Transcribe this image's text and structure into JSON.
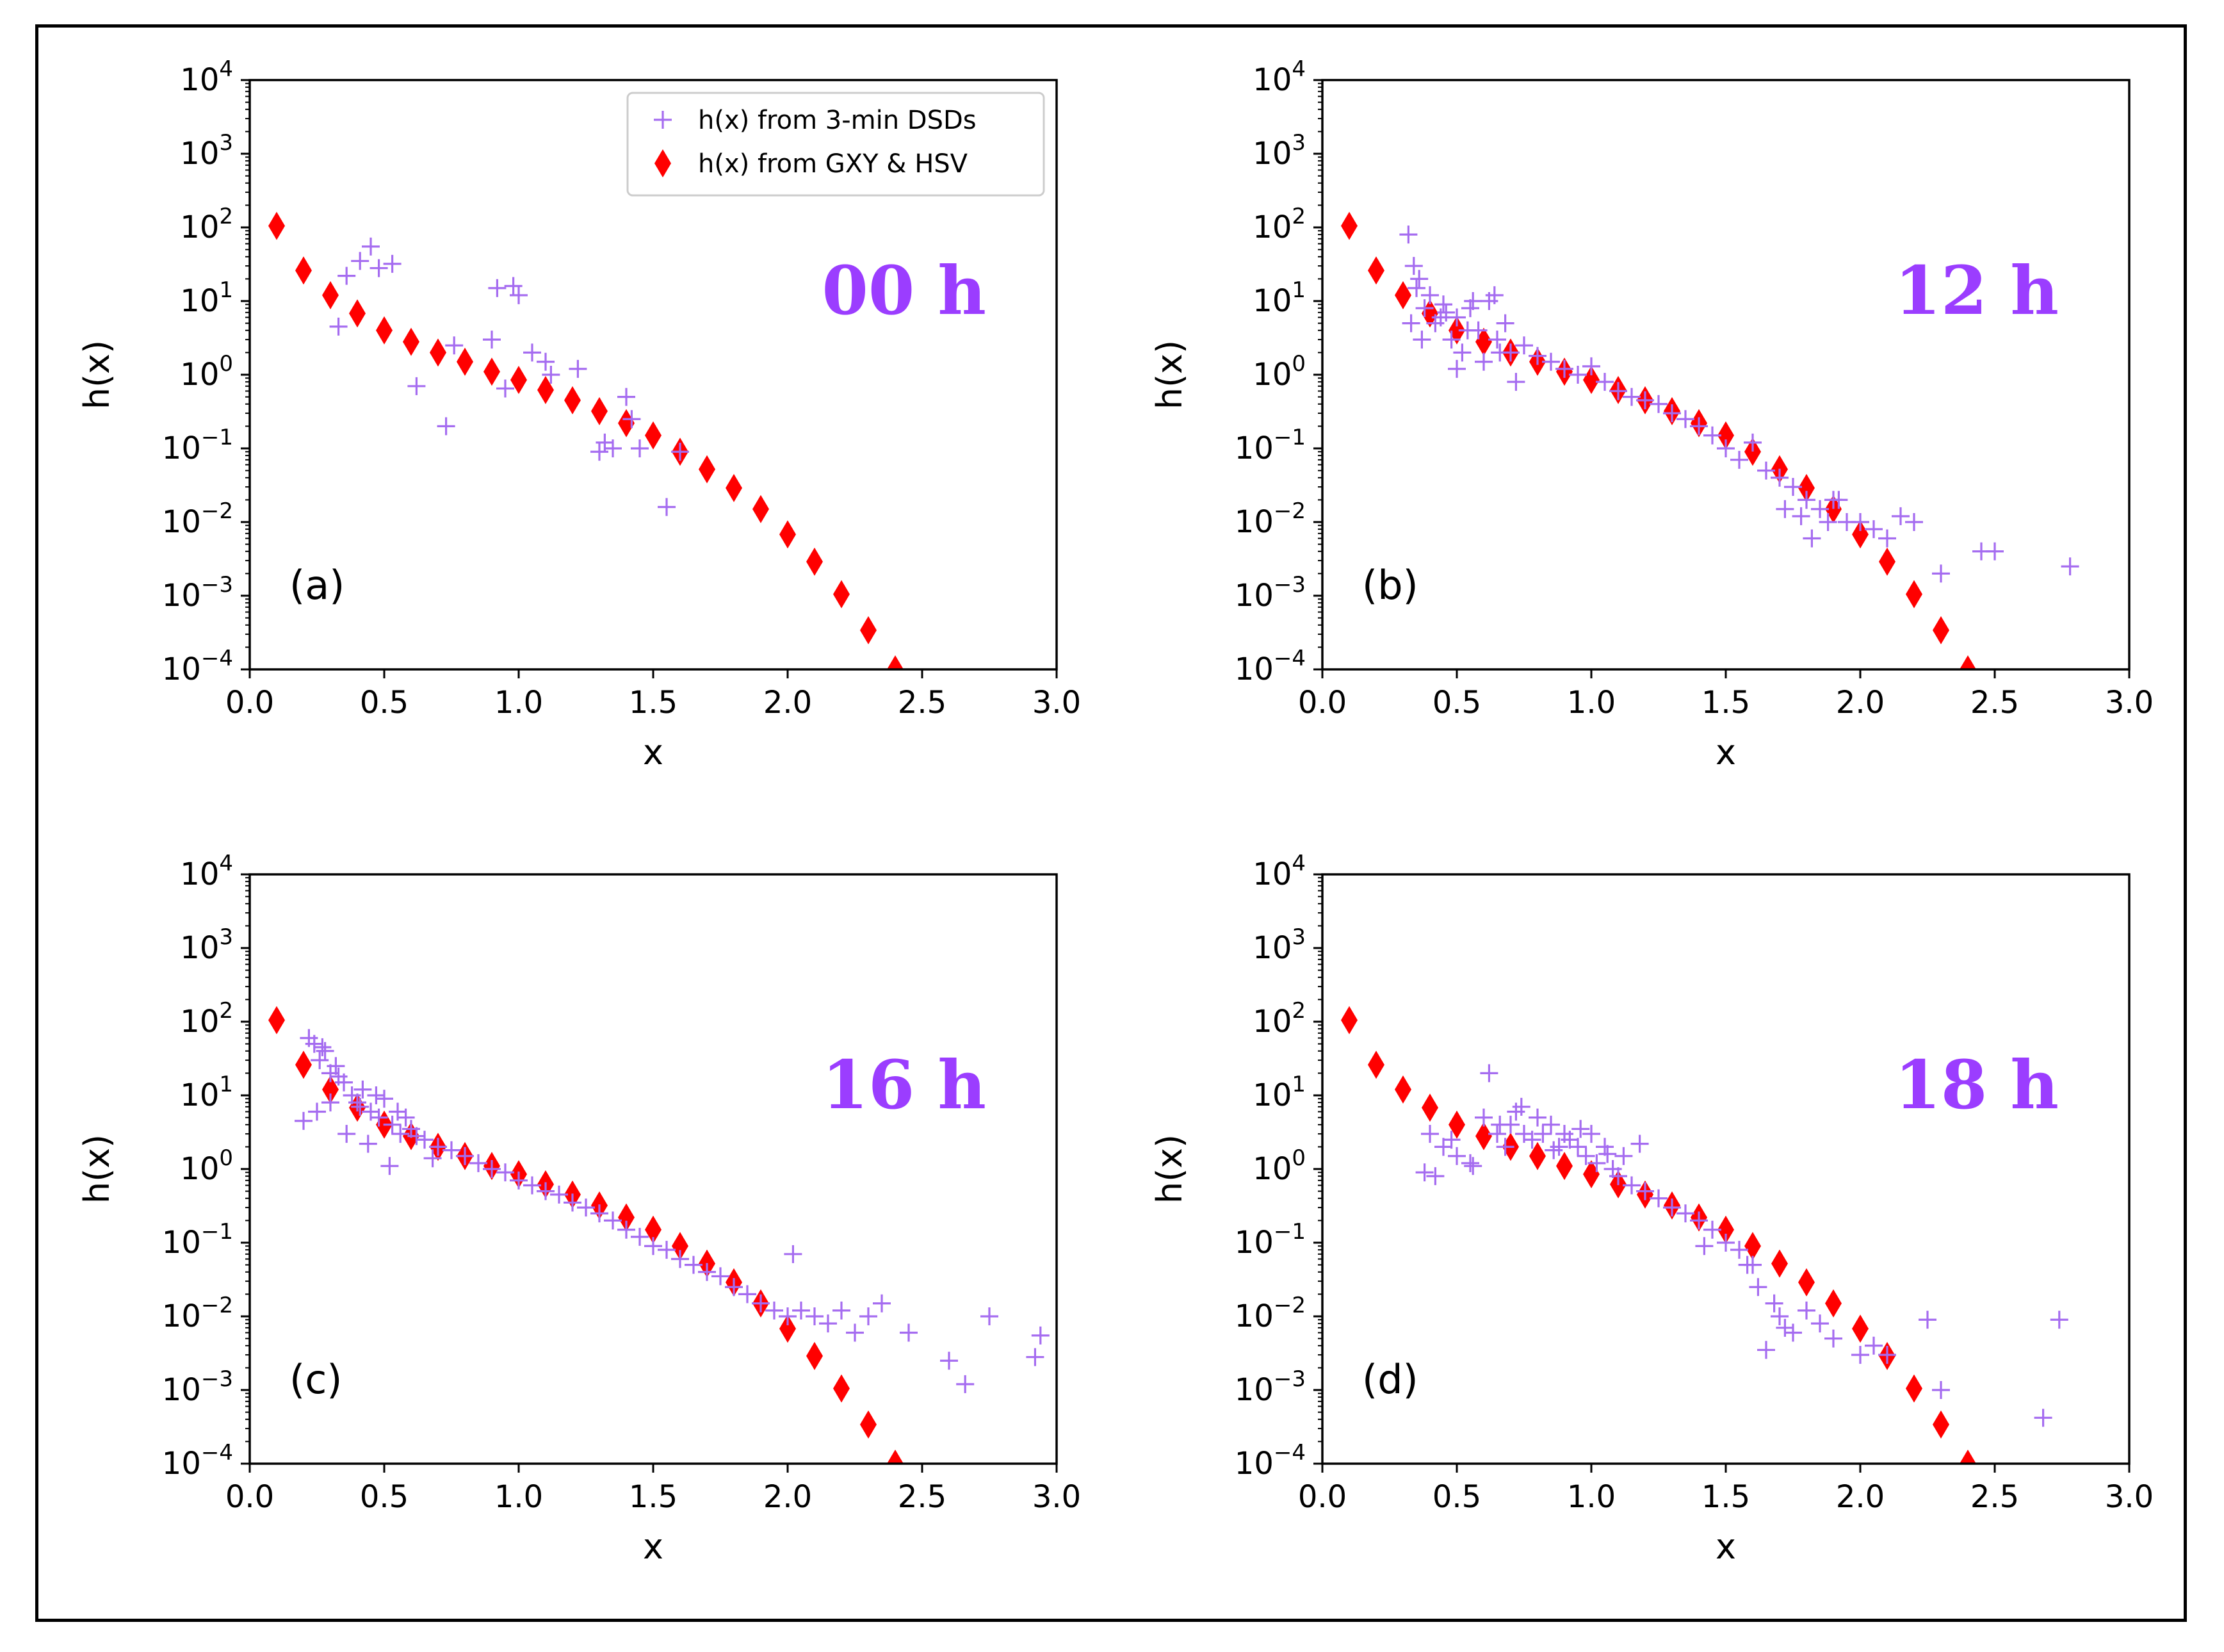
{
  "colors": {
    "empirical": "#a56cf0",
    "theory": "#ff0000",
    "time_label": "#9b3dff"
  },
  "legend": {
    "empirical_label": "h(x) from 3-min DSDs",
    "theory_label": "h(x) from GXY & HSV"
  },
  "chart_data": [
    {
      "type": "scatter",
      "panel_label": "(a)",
      "time_label": "00  h",
      "xlabel": "x",
      "ylabel": "h(x)",
      "xlim": [
        0.0,
        3.0
      ],
      "ylim_log10": [
        -4,
        4
      ],
      "x_ticks": [
        "0.0",
        "0.5",
        "1.0",
        "1.5",
        "2.0",
        "2.5",
        "3.0"
      ],
      "y_tick_exponents": [
        "-4",
        "-3",
        "-2",
        "-1",
        "0",
        "1",
        "2",
        "3",
        "4"
      ],
      "y_tick_base": "10",
      "has_legend": true,
      "series": [
        {
          "name": "h(x) from GXY & HSV",
          "marker": "diamond",
          "x": [
            0.1,
            0.2,
            0.3,
            0.4,
            0.5,
            0.6,
            0.7,
            0.8,
            0.9,
            1.0,
            1.1,
            1.2,
            1.3,
            1.4,
            1.5,
            1.6,
            1.7,
            1.8,
            1.9,
            2.0,
            2.1,
            2.2,
            2.3,
            2.4
          ],
          "y": [
            105,
            26,
            12,
            6.8,
            4.0,
            2.8,
            2.0,
            1.5,
            1.1,
            0.85,
            0.62,
            0.45,
            0.32,
            0.22,
            0.15,
            0.09,
            0.052,
            0.029,
            0.015,
            0.0068,
            0.0029,
            0.00105,
            0.00034,
            0.0001
          ]
        },
        {
          "name": "h(x) from 3-min DSDs",
          "marker": "plus",
          "x": [
            0.33,
            0.36,
            0.41,
            0.45,
            0.48,
            0.53,
            0.62,
            0.73,
            0.76,
            0.9,
            0.92,
            0.95,
            0.98,
            1.0,
            1.05,
            1.1,
            1.12,
            1.22,
            1.3,
            1.32,
            1.35,
            1.4,
            1.42,
            1.45,
            1.55,
            1.6
          ],
          "y": [
            4.5,
            22,
            35,
            55,
            28,
            32,
            0.7,
            0.2,
            2.5,
            3.0,
            15,
            0.65,
            16,
            12,
            2.0,
            1.5,
            1.0,
            1.2,
            0.09,
            0.12,
            0.1,
            0.5,
            0.25,
            0.1,
            0.016,
            0.09
          ]
        }
      ]
    },
    {
      "type": "scatter",
      "panel_label": "(b)",
      "time_label": "12  h",
      "xlabel": "x",
      "ylabel": "h(x)",
      "xlim": [
        0.0,
        3.0
      ],
      "ylim_log10": [
        -4,
        4
      ],
      "x_ticks": [
        "0.0",
        "0.5",
        "1.0",
        "1.5",
        "2.0",
        "2.5",
        "3.0"
      ],
      "y_tick_exponents": [
        "-4",
        "-3",
        "-2",
        "-1",
        "0",
        "1",
        "2",
        "3",
        "4"
      ],
      "y_tick_base": "10",
      "has_legend": false,
      "series": [
        {
          "name": "h(x) from GXY & HSV",
          "marker": "diamond",
          "x": [
            0.1,
            0.2,
            0.3,
            0.4,
            0.5,
            0.6,
            0.7,
            0.8,
            0.9,
            1.0,
            1.1,
            1.2,
            1.3,
            1.4,
            1.5,
            1.6,
            1.7,
            1.8,
            1.9,
            2.0,
            2.1,
            2.2,
            2.3,
            2.4
          ],
          "y": [
            105,
            26,
            12,
            6.8,
            4.0,
            2.8,
            2.0,
            1.5,
            1.1,
            0.85,
            0.62,
            0.45,
            0.32,
            0.22,
            0.15,
            0.09,
            0.052,
            0.029,
            0.015,
            0.0068,
            0.0029,
            0.00105,
            0.00034,
            0.0001
          ]
        },
        {
          "name": "h(x) from 3-min DSDs",
          "marker": "plus",
          "x": [
            0.32,
            0.34,
            0.36,
            0.38,
            0.4,
            0.42,
            0.45,
            0.48,
            0.5,
            0.52,
            0.55,
            0.58,
            0.6,
            0.62,
            0.65,
            0.68,
            0.7,
            0.75,
            0.8,
            0.85,
            0.9,
            0.95,
            1.0,
            1.05,
            1.1,
            1.15,
            1.2,
            1.25,
            1.3,
            1.35,
            1.4,
            1.45,
            1.5,
            1.55,
            1.6,
            1.65,
            1.7,
            1.75,
            1.8,
            1.85,
            1.9,
            1.95,
            2.0,
            2.05,
            2.1,
            2.15,
            2.2,
            2.3,
            2.45,
            2.5,
            2.78,
            0.33,
            0.37,
            0.44,
            0.5,
            0.56,
            0.66,
            0.72,
            0.35,
            0.46,
            0.54,
            0.64,
            1.72,
            1.78,
            1.82,
            1.88,
            1.92
          ],
          "y": [
            80,
            30,
            20,
            8,
            12,
            5,
            9,
            3,
            6,
            2,
            8,
            4,
            1.5,
            10,
            3,
            5,
            2,
            2.5,
            1.8,
            1.5,
            1.2,
            1.0,
            1.3,
            0.8,
            0.6,
            0.5,
            0.45,
            0.4,
            0.3,
            0.25,
            0.2,
            0.15,
            0.1,
            0.07,
            0.12,
            0.05,
            0.04,
            0.03,
            0.02,
            0.015,
            0.02,
            0.01,
            0.01,
            0.008,
            0.006,
            0.012,
            0.01,
            0.002,
            0.004,
            0.004,
            0.0025,
            5,
            3,
            6,
            1.2,
            10,
            2,
            0.8,
            15,
            7,
            4,
            12,
            0.015,
            0.012,
            0.006,
            0.01,
            0.02
          ]
        }
      ]
    },
    {
      "type": "scatter",
      "panel_label": "(c)",
      "time_label": "16  h",
      "xlabel": "x",
      "ylabel": "h(x)",
      "xlim": [
        0.0,
        3.0
      ],
      "ylim_log10": [
        -4,
        4
      ],
      "x_ticks": [
        "0.0",
        "0.5",
        "1.0",
        "1.5",
        "2.0",
        "2.5",
        "3.0"
      ],
      "y_tick_exponents": [
        "-4",
        "-3",
        "-2",
        "-1",
        "0",
        "1",
        "2",
        "3",
        "4"
      ],
      "y_tick_base": "10",
      "has_legend": false,
      "series": [
        {
          "name": "h(x) from GXY & HSV",
          "marker": "diamond",
          "x": [
            0.1,
            0.2,
            0.3,
            0.4,
            0.5,
            0.6,
            0.7,
            0.8,
            0.9,
            1.0,
            1.1,
            1.2,
            1.3,
            1.4,
            1.5,
            1.6,
            1.7,
            1.8,
            1.9,
            2.0,
            2.1,
            2.2,
            2.3,
            2.4
          ],
          "y": [
            105,
            26,
            12,
            6.8,
            4.0,
            2.8,
            2.0,
            1.5,
            1.1,
            0.85,
            0.62,
            0.45,
            0.32,
            0.22,
            0.15,
            0.09,
            0.052,
            0.029,
            0.015,
            0.0068,
            0.0029,
            0.00105,
            0.00034,
            0.0001
          ]
        },
        {
          "name": "h(x) from 3-min DSDs",
          "marker": "plus",
          "x": [
            0.2,
            0.22,
            0.24,
            0.26,
            0.28,
            0.3,
            0.32,
            0.35,
            0.38,
            0.4,
            0.42,
            0.45,
            0.48,
            0.5,
            0.53,
            0.56,
            0.6,
            0.65,
            0.7,
            0.75,
            0.8,
            0.85,
            0.9,
            0.95,
            1.0,
            1.05,
            1.1,
            1.15,
            1.2,
            1.25,
            1.3,
            1.35,
            1.4,
            1.45,
            1.5,
            1.55,
            1.6,
            1.65,
            1.7,
            1.75,
            1.8,
            1.85,
            1.9,
            1.95,
            2.0,
            2.02,
            2.05,
            2.1,
            2.15,
            2.2,
            2.25,
            2.3,
            2.35,
            2.45,
            2.6,
            2.66,
            2.75,
            2.92,
            2.94,
            0.25,
            0.3,
            0.36,
            0.44,
            0.52,
            0.58,
            0.68,
            0.27,
            0.33,
            0.41,
            0.47,
            0.55,
            0.62
          ],
          "y": [
            4.5,
            60,
            50,
            30,
            40,
            20,
            25,
            15,
            10,
            8,
            12,
            6,
            5,
            9,
            4,
            3,
            3.5,
            2.5,
            2,
            1.8,
            1.5,
            1.2,
            1.0,
            0.9,
            0.7,
            0.6,
            0.5,
            0.45,
            0.35,
            0.3,
            0.25,
            0.2,
            0.15,
            0.12,
            0.09,
            0.08,
            0.06,
            0.05,
            0.04,
            0.035,
            0.025,
            0.02,
            0.015,
            0.012,
            0.01,
            0.07,
            0.012,
            0.01,
            0.008,
            0.012,
            0.006,
            0.01,
            0.015,
            0.006,
            0.0025,
            0.0012,
            0.01,
            0.0028,
            0.0055,
            6,
            8,
            3,
            2.2,
            1.1,
            5,
            1.4,
            45,
            18,
            7,
            10,
            6,
            2.8
          ]
        }
      ]
    },
    {
      "type": "scatter",
      "panel_label": "(d)",
      "time_label": "18  h",
      "xlabel": "x",
      "ylabel": "h(x)",
      "xlim": [
        0.0,
        3.0
      ],
      "ylim_log10": [
        -4,
        4
      ],
      "x_ticks": [
        "0.0",
        "0.5",
        "1.0",
        "1.5",
        "2.0",
        "2.5",
        "3.0"
      ],
      "y_tick_exponents": [
        "-4",
        "-3",
        "-2",
        "-1",
        "0",
        "1",
        "2",
        "3",
        "4"
      ],
      "y_tick_base": "10",
      "has_legend": false,
      "series": [
        {
          "name": "h(x) from GXY & HSV",
          "marker": "diamond",
          "x": [
            0.1,
            0.2,
            0.3,
            0.4,
            0.5,
            0.6,
            0.7,
            0.8,
            0.9,
            1.0,
            1.1,
            1.2,
            1.3,
            1.4,
            1.5,
            1.6,
            1.7,
            1.8,
            1.9,
            2.0,
            2.1,
            2.2,
            2.3,
            2.4
          ],
          "y": [
            105,
            26,
            12,
            6.8,
            4.0,
            2.8,
            2.0,
            1.5,
            1.1,
            0.85,
            0.62,
            0.45,
            0.32,
            0.22,
            0.15,
            0.09,
            0.052,
            0.029,
            0.015,
            0.0068,
            0.0029,
            0.00105,
            0.00034,
            0.0001
          ]
        },
        {
          "name": "h(x) from 3-min DSDs",
          "marker": "plus",
          "x": [
            0.38,
            0.4,
            0.45,
            0.5,
            0.55,
            0.6,
            0.62,
            0.65,
            0.68,
            0.7,
            0.72,
            0.75,
            0.78,
            0.8,
            0.82,
            0.85,
            0.88,
            0.9,
            0.92,
            0.95,
            0.98,
            1.0,
            1.02,
            1.05,
            1.08,
            1.1,
            1.12,
            1.15,
            1.2,
            1.25,
            1.3,
            1.35,
            1.4,
            1.45,
            1.5,
            1.55,
            1.6,
            1.65,
            1.7,
            1.75,
            1.8,
            1.85,
            1.9,
            2.0,
            2.05,
            2.1,
            2.25,
            2.3,
            2.68,
            2.74,
            0.42,
            0.48,
            0.56,
            0.66,
            0.74,
            0.86,
            0.96,
            1.06,
            1.18,
            1.42,
            1.58,
            1.62,
            1.68,
            1.72
          ],
          "y": [
            0.9,
            3,
            2,
            1.5,
            1.2,
            5,
            20,
            3,
            2,
            4,
            6,
            3,
            2.5,
            5,
            3,
            4,
            2,
            3,
            2.5,
            2,
            1.5,
            3,
            1.2,
            2,
            1.0,
            0.8,
            1.5,
            0.6,
            0.5,
            0.4,
            0.3,
            0.25,
            0.2,
            0.15,
            0.1,
            0.08,
            0.05,
            0.0035,
            0.01,
            0.006,
            0.012,
            0.008,
            0.005,
            0.003,
            0.004,
            0.003,
            0.009,
            0.001,
            0.00042,
            0.009,
            0.8,
            2.5,
            1.1,
            4,
            7,
            1.8,
            3.5,
            1.6,
            2.2,
            0.09,
            0.05,
            0.025,
            0.015,
            0.007
          ]
        }
      ]
    }
  ]
}
